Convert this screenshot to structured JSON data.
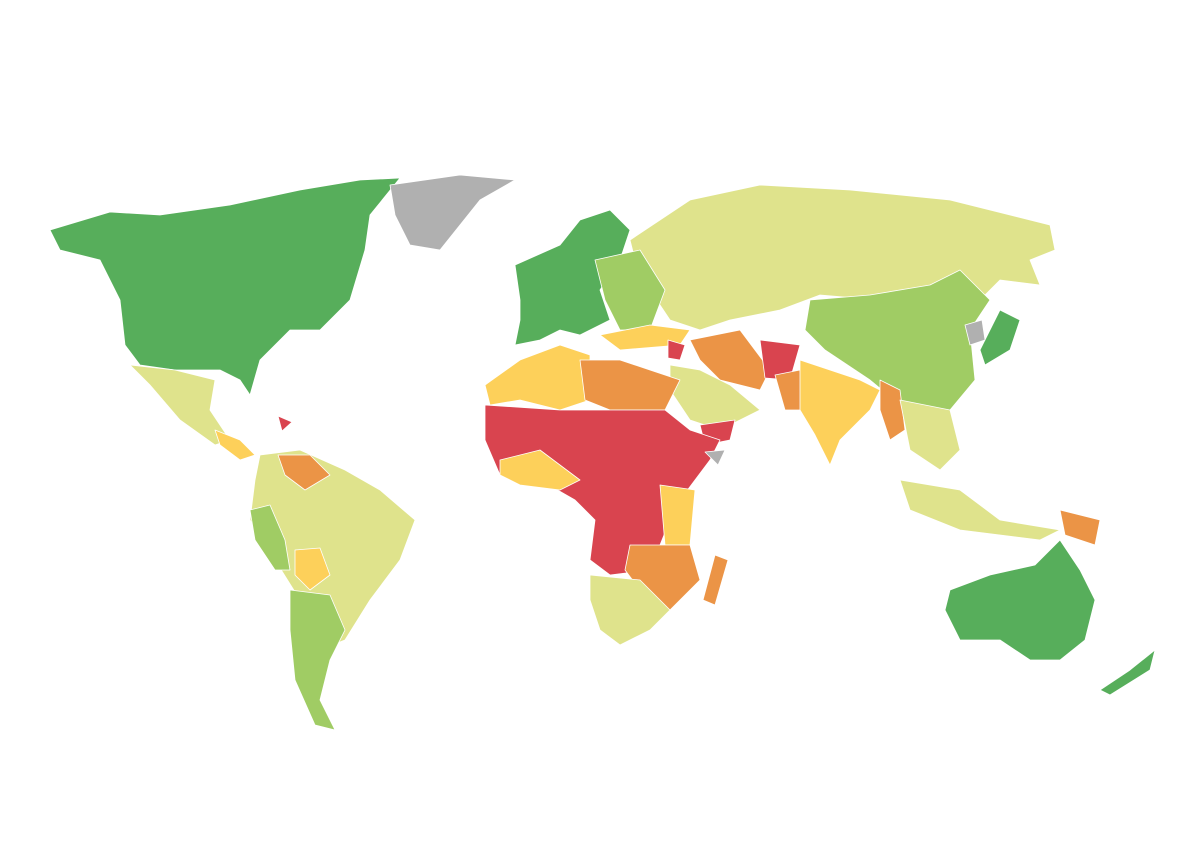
{
  "map": {
    "colors": [
      "#57ae5b",
      "#a0cc64",
      "#dfe38c",
      "#fdd05a",
      "#eb9446",
      "#d9444f",
      "#b0b0b0"
    ]
  }
}
